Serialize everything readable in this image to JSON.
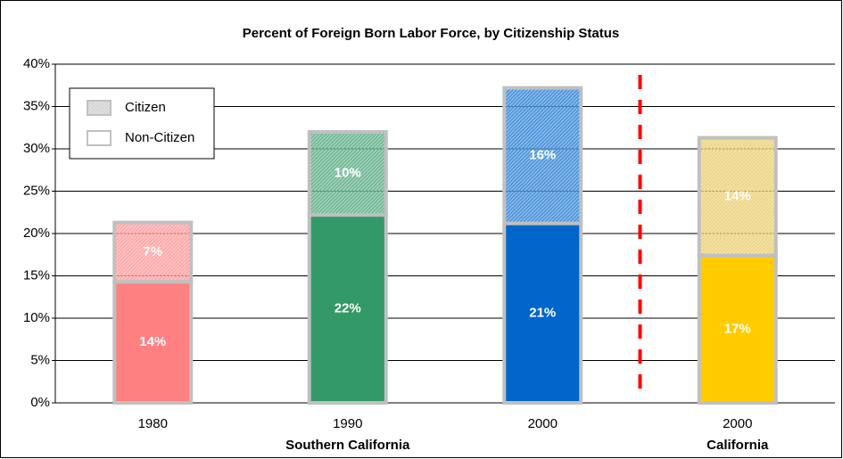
{
  "chart_data": {
    "type": "stacked_bar",
    "title": "Percent of Foreign Born Labor Force, by Citizenship Status",
    "categories": [
      "1980",
      "1990",
      "2000",
      "2000"
    ],
    "category_groups": [
      "Southern California",
      "Southern California",
      "Southern California",
      "California"
    ],
    "series": [
      {
        "name": "Non-Citizen",
        "legend_color": "#ffffff",
        "hatched": false,
        "colors": [
          "#ff8080",
          "#339966",
          "#0066cc",
          "#ffcc00"
        ],
        "values": [
          14.3,
          22.2,
          21.2,
          17.4
        ],
        "value_labels": [
          "14%",
          "22%",
          "21%",
          "17%"
        ]
      },
      {
        "name": "Citizen",
        "legend_color": "#bfbfbf",
        "hatched": true,
        "colors": [
          "#ff8080",
          "#339966",
          "#0066cc",
          "#e6c24d"
        ],
        "values": [
          7.0,
          9.8,
          16.0,
          13.9
        ],
        "value_labels": [
          "7%",
          "10%",
          "16%",
          "14%"
        ]
      }
    ],
    "ylim": [
      0,
      40
    ],
    "yticks": [
      {
        "value": 0,
        "label": "0%"
      },
      {
        "value": 5,
        "label": "5%"
      },
      {
        "value": 10,
        "label": "10%"
      },
      {
        "value": 15,
        "label": "15%"
      },
      {
        "value": 20,
        "label": "20%"
      },
      {
        "value": 25,
        "label": "25%"
      },
      {
        "value": 30,
        "label": "30%"
      },
      {
        "value": 35,
        "label": "35%"
      },
      {
        "value": 40,
        "label": "40%"
      }
    ],
    "grid": true,
    "legend": "upper left"
  }
}
